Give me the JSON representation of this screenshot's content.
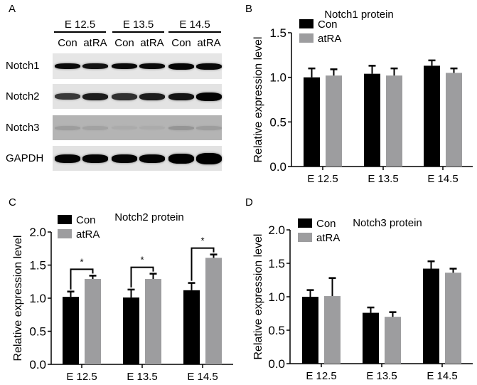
{
  "panels": {
    "A": {
      "letter": "A",
      "stages": [
        "E 12.5",
        "E 13.5",
        "E 14.5"
      ],
      "lanes": [
        "Con",
        "atRA",
        "Con",
        "atRA",
        "Con",
        "atRA"
      ],
      "rows": [
        {
          "label": "Notch1",
          "bg": "#e6e6e6",
          "intensity": [
            0.95,
            0.9,
            0.95,
            0.95,
            0.97,
            0.95
          ],
          "thickness": [
            8,
            8,
            8,
            8,
            9,
            9
          ]
        },
        {
          "label": "Notch2",
          "bg": "#e3e3e3",
          "intensity": [
            0.7,
            0.85,
            0.75,
            0.85,
            0.9,
            0.98
          ],
          "thickness": [
            9,
            10,
            10,
            10,
            10,
            12
          ]
        },
        {
          "label": "Notch3",
          "bg": "#b4b4b4",
          "intensity": [
            0.25,
            0.22,
            0.15,
            0.15,
            0.3,
            0.25
          ],
          "thickness": [
            6,
            6,
            5,
            5,
            6,
            6
          ]
        },
        {
          "label": "GAPDH",
          "bg": "#e2e2e2",
          "intensity": [
            0.98,
            0.98,
            0.98,
            0.98,
            1.0,
            1.0
          ],
          "thickness": [
            12,
            12,
            12,
            12,
            14,
            16
          ]
        }
      ]
    },
    "B": {
      "letter": "B"
    },
    "C": {
      "letter": "C"
    },
    "D": {
      "letter": "D"
    }
  },
  "colors": {
    "con": "#000000",
    "atra": "#9d9d9f",
    "axis": "#000000"
  },
  "chart_data": [
    {
      "panel": "B",
      "type": "bar",
      "title": "Notch1 protein",
      "xlabel": "",
      "ylabel": "Relative expression level",
      "categories": [
        "E 12.5",
        "E 13.5",
        "E 14.5"
      ],
      "yticks": [
        "0.0",
        "0.5",
        "1.0",
        "1.5"
      ],
      "ylim": [
        0,
        1.5
      ],
      "legend": [
        "Con",
        "atRA"
      ],
      "legend_position": "top-left",
      "series": [
        {
          "name": "Con",
          "values": [
            1.0,
            1.04,
            1.13
          ],
          "errors": [
            0.1,
            0.09,
            0.06
          ]
        },
        {
          "name": "atRA",
          "values": [
            1.02,
            1.02,
            1.05
          ],
          "errors": [
            0.07,
            0.08,
            0.05
          ]
        }
      ],
      "significance": []
    },
    {
      "panel": "C",
      "type": "bar",
      "title": "Notch2 protein",
      "xlabel": "",
      "ylabel": "Relative expression level",
      "categories": [
        "E 12.5",
        "E 13.5",
        "E 14.5"
      ],
      "yticks": [
        "0.0",
        "0.5",
        "1.0",
        "1.5",
        "2.0"
      ],
      "ylim": [
        0,
        2.0
      ],
      "legend": [
        "Con",
        "atRA"
      ],
      "legend_position": "top-left",
      "series": [
        {
          "name": "Con",
          "values": [
            1.02,
            1.01,
            1.12
          ],
          "errors": [
            0.08,
            0.12,
            0.11
          ]
        },
        {
          "name": "atRA",
          "values": [
            1.29,
            1.29,
            1.61
          ],
          "errors": [
            0.05,
            0.08,
            0.05
          ]
        }
      ],
      "significance": [
        "*",
        "*",
        "*"
      ]
    },
    {
      "panel": "D",
      "type": "bar",
      "title": "Notch3 protein",
      "xlabel": "",
      "ylabel": "Relative expression level",
      "categories": [
        "E 12.5",
        "E 13.5",
        "E 14.5"
      ],
      "yticks": [
        "0.0",
        "0.5",
        "1.0",
        "1.5",
        "2.0"
      ],
      "ylim": [
        0,
        2.0
      ],
      "legend": [
        "Con",
        "atRA"
      ],
      "legend_position": "top-left",
      "series": [
        {
          "name": "Con",
          "values": [
            1.0,
            0.76,
            1.42
          ],
          "errors": [
            0.1,
            0.08,
            0.11
          ]
        },
        {
          "name": "atRA",
          "values": [
            1.01,
            0.7,
            1.36
          ],
          "errors": [
            0.27,
            0.07,
            0.06
          ]
        }
      ],
      "significance": []
    }
  ]
}
